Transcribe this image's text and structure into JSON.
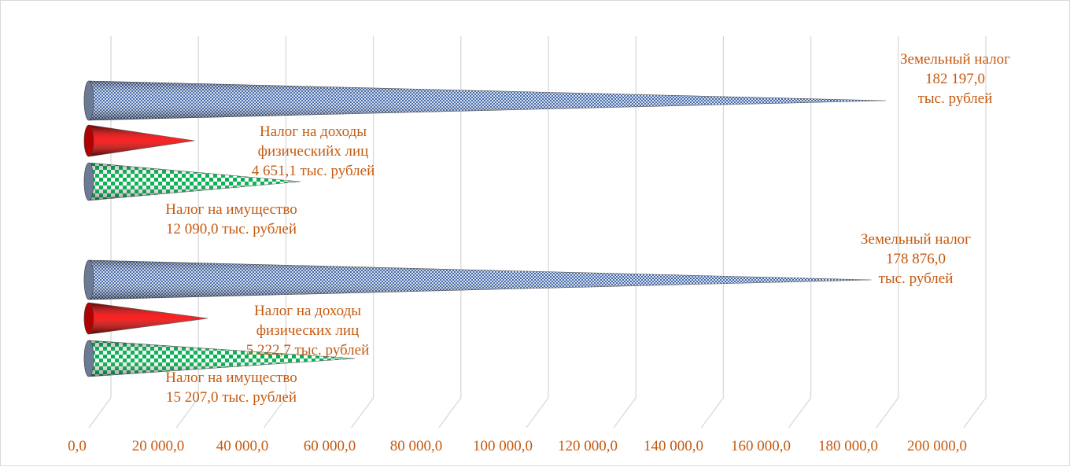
{
  "chart_data": {
    "type": "bar",
    "orientation": "horizontal",
    "bar_shape": "cone",
    "xlim": [
      0,
      200000
    ],
    "x_ticks": [
      "0,0",
      "20 000,0",
      "40 000,0",
      "60 000,0",
      "80 000,0",
      "100 000,0",
      "120 000,0",
      "140 000,0",
      "160 000,0",
      "180 000,0",
      "200 000,0"
    ],
    "grid": true,
    "legend": "none",
    "groups": [
      {
        "bars": [
          {
            "key": "land",
            "value": 182197.0,
            "color": "#4472c4",
            "label_lines": [
              "Земельный налог",
              "182 197,0",
              "тыс. рублей"
            ]
          },
          {
            "key": "income",
            "value": 4651.1,
            "color": "#ff0000",
            "label_lines": [
              "Налог на доходы",
              "физическийх лиц",
              "4 651,1 тыс. рублей"
            ]
          },
          {
            "key": "property",
            "value": 12090.0,
            "color": "#00b050",
            "label_lines": [
              "Налог на имущество",
              "12 090,0 тыс. рублей"
            ]
          }
        ]
      },
      {
        "bars": [
          {
            "key": "land",
            "value": 178876.0,
            "color": "#4472c4",
            "label_lines": [
              "Земельный налог",
              "178 876,0",
              "тыс. рублей"
            ]
          },
          {
            "key": "income",
            "value": 5222.7,
            "color": "#ff0000",
            "label_lines": [
              "Налог на доходы",
              "физических лиц",
              "5 222,7 тыс. рублей"
            ]
          },
          {
            "key": "property",
            "value": 15207.0,
            "color": "#00b050",
            "label_lines": [
              "Налог на имущество",
              "15 207,0 тыс. рублей"
            ]
          }
        ]
      }
    ],
    "label_color": "#c55a11",
    "grid_color": "#d9d9d9"
  }
}
